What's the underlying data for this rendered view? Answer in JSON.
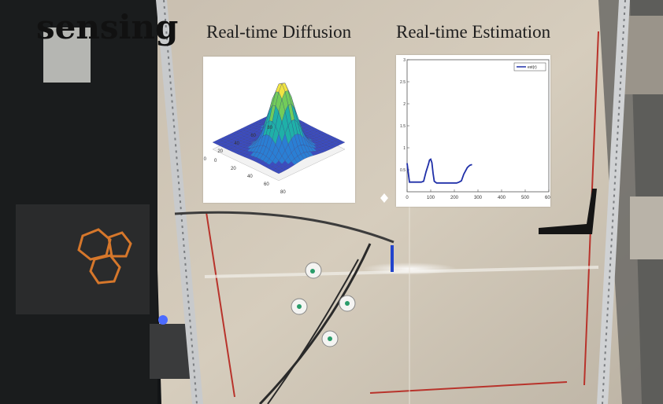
{
  "caption": "sensing",
  "diffusion_title": "Real-time Diffusion",
  "estimation_title": "Real-time Estimation",
  "chart_data": [
    {
      "type": "surface",
      "title": "",
      "x_ticks": [
        "0",
        "20",
        "40",
        "60",
        "80"
      ],
      "y_ticks": [
        "0",
        "20",
        "40",
        "60",
        "80"
      ],
      "peak": {
        "x": 65,
        "y": 60,
        "height": 1.0
      },
      "colormap": [
        "#3b4cc0",
        "#2a7fd4",
        "#1fb0a8",
        "#72cc5a",
        "#f0e442"
      ]
    },
    {
      "type": "line",
      "title": "",
      "xlabel": "",
      "ylabel": "",
      "xlim": [
        0,
        400
      ],
      "ylim": [
        0,
        3
      ],
      "x_ticks": [
        "0",
        "100",
        "200",
        "300",
        "400",
        "500",
        "600"
      ],
      "y_ticks": [
        "0.5",
        "1",
        "1.5",
        "2",
        "2.5",
        "3"
      ],
      "legend": "est(r)",
      "legend_position": "top-right",
      "series": [
        {
          "name": "est(r)",
          "color": "#1f2fa8",
          "x": [
            0,
            10,
            20,
            40,
            60,
            70,
            80,
            90,
            95,
            100,
            105,
            110,
            115,
            125,
            140,
            160,
            180,
            200,
            210,
            220,
            230,
            240,
            255,
            265,
            275
          ],
          "y": [
            0.65,
            0.22,
            0.22,
            0.22,
            0.22,
            0.24,
            0.45,
            0.62,
            0.72,
            0.74,
            0.66,
            0.42,
            0.24,
            0.2,
            0.2,
            0.2,
            0.2,
            0.2,
            0.2,
            0.22,
            0.25,
            0.4,
            0.55,
            0.6,
            0.62
          ]
        }
      ]
    }
  ]
}
